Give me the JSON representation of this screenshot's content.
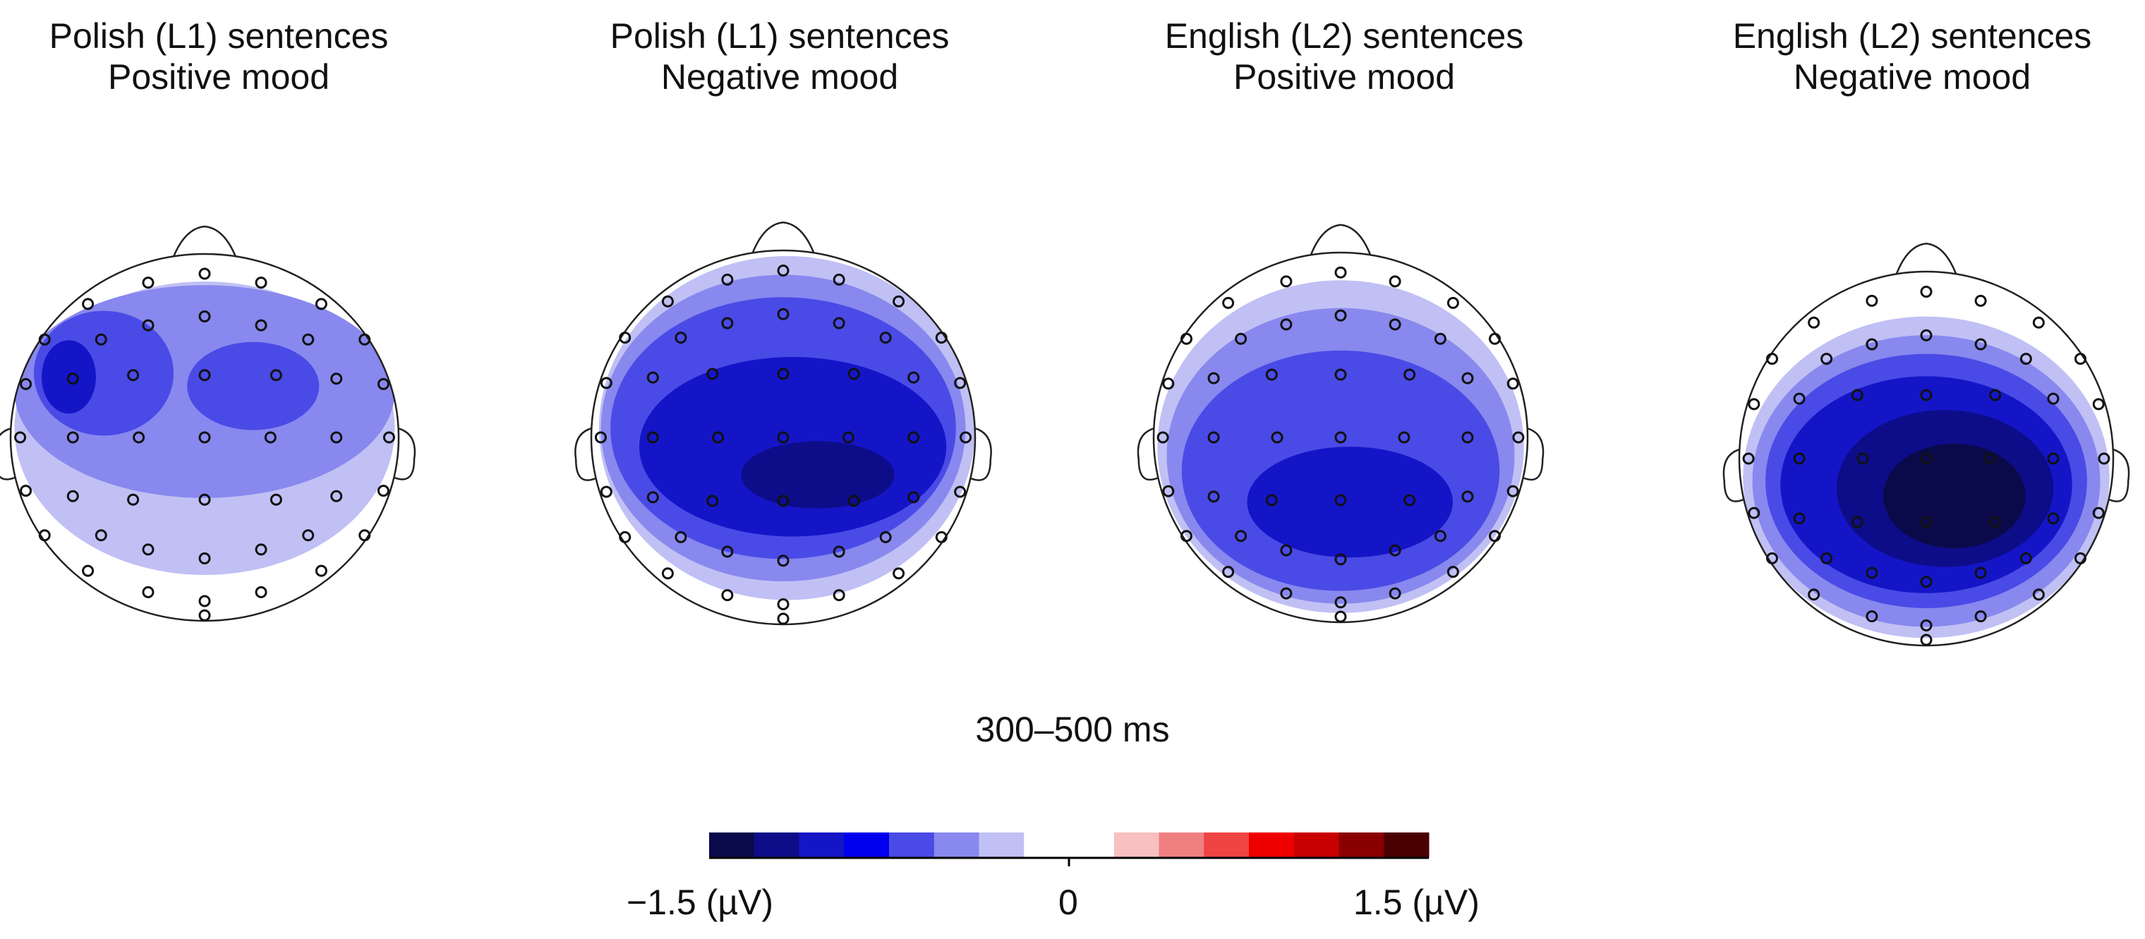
{
  "figure": {
    "time_window": "300–500 ms"
  },
  "panels": [
    {
      "line1": "Polish (L1) sentences",
      "line2": "Positive mood",
      "pattern": "pl_pos"
    },
    {
      "line1": "Polish (L1) sentences",
      "line2": "Negative mood",
      "pattern": "pl_neg"
    },
    {
      "line1": "English (L2) sentences",
      "line2": "Positive mood",
      "pattern": "en_pos"
    },
    {
      "line1": "English (L2) sentences",
      "line2": "Negative mood",
      "pattern": "en_neg"
    }
  ],
  "colorbar": {
    "min_label": "−1.5 (µV)",
    "mid_label": "0",
    "max_label": "1.5 (µV)",
    "min": -1.5,
    "max": 1.5,
    "colors": [
      "#0a0a4a",
      "#0d0d8a",
      "#1515c8",
      "#0000ee",
      "#4a4ae6",
      "#8888ee",
      "#c0c0f5",
      "#ffffff",
      "#ffffff",
      "#f8c0c0",
      "#f08080",
      "#ee4444",
      "#ee0000",
      "#c80000",
      "#8a0000",
      "#4a0000"
    ]
  }
}
